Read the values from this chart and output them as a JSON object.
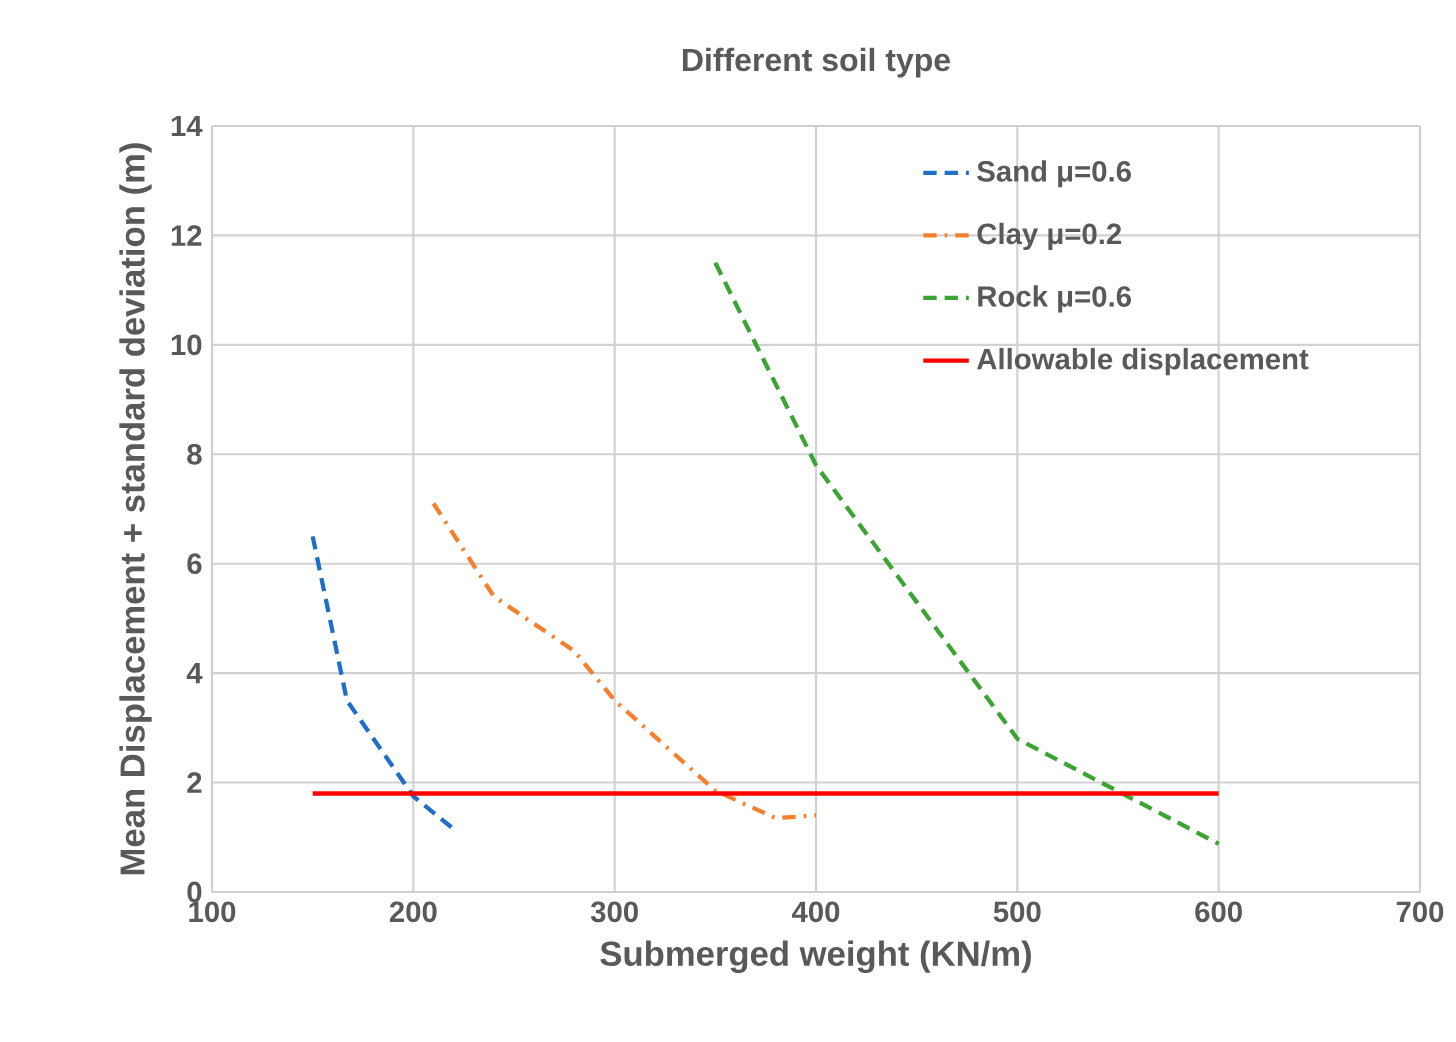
{
  "chart_data": {
    "type": "line",
    "title": "Different soil type",
    "xlabel": "Submerged weight (KN/m)",
    "ylabel": "Mean Displacement + standard deviation (m)",
    "xlim": [
      100,
      700
    ],
    "xticks": [
      100,
      200,
      300,
      400,
      500,
      600,
      700
    ],
    "ylim": [
      0,
      14
    ],
    "yticks": [
      0,
      2,
      4,
      6,
      8,
      10,
      12,
      14
    ],
    "grid": true,
    "legend": "top right",
    "marker": "none",
    "series": [
      {
        "name": "Sand μ=0.6",
        "color": "#1f6fc8",
        "line_style": "dashed",
        "x": [
          150,
          167,
          200,
          220
        ],
        "values": [
          6.5,
          3.5,
          1.75,
          1.15
        ]
      },
      {
        "name": "Clay μ=0.2",
        "color": "#f57f2a",
        "line_style": "dashdot",
        "x": [
          210,
          240,
          280,
          300,
          350,
          380,
          400
        ],
        "values": [
          7.1,
          5.4,
          4.4,
          3.5,
          1.85,
          1.35,
          1.4
        ]
      },
      {
        "name": "Rock μ=0.6",
        "color": "#3ca433",
        "line_style": "dashed",
        "x": [
          350,
          400,
          500,
          600
        ],
        "values": [
          11.5,
          7.8,
          2.8,
          0.88
        ]
      },
      {
        "name": "Allowable displacement",
        "color": "#ff0000",
        "line_style": "solid",
        "x": [
          150,
          600
        ],
        "values": [
          1.8,
          1.8
        ]
      }
    ]
  }
}
